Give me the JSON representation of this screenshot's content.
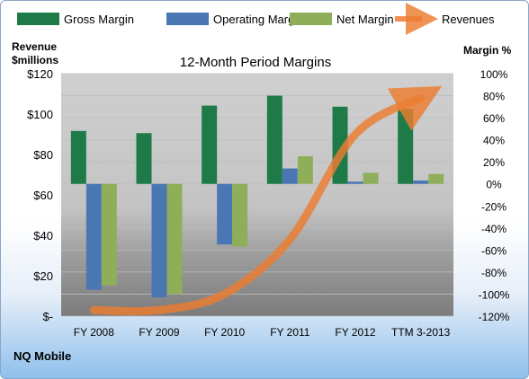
{
  "chart_data": {
    "type": "bar",
    "title": "12-Month Period Margins",
    "company": "NQ Mobile",
    "left_axis_label": [
      "Revenue",
      "$millions"
    ],
    "right_axis_label": "Margin %",
    "categories": [
      "FY 2008",
      "FY 2009",
      "FY 2010",
      "FY 2011",
      "FY 2012",
      "TTM 3-2013"
    ],
    "left_ticks": [
      "$-",
      "$20",
      "$40",
      "$60",
      "$80",
      "$100",
      "$120"
    ],
    "right_ticks": [
      "-120%",
      "-100%",
      "-80%",
      "-60%",
      "-40%",
      "-20%",
      "0%",
      "20%",
      "40%",
      "60%",
      "80%",
      "100%"
    ],
    "ylim_revenue": [
      0,
      120
    ],
    "ylim_margin": [
      -120,
      100
    ],
    "series": [
      {
        "name": "Gross Margin",
        "color": "#1e7b48",
        "values": [
          48,
          46,
          71,
          80,
          70,
          68
        ]
      },
      {
        "name": "Operating Margin",
        "color": "#4a77b4",
        "values": [
          -96,
          -103,
          -55,
          14,
          2,
          3
        ]
      },
      {
        "name": "Net Margin",
        "color": "#8fae5a",
        "values": [
          -92,
          -100,
          -57,
          25,
          10,
          9
        ]
      }
    ],
    "line_series": {
      "name": "Revenues",
      "color": "#ed7d31",
      "values": [
        3,
        3,
        11,
        38,
        90,
        108
      ]
    },
    "grid": true,
    "legend": "top"
  }
}
